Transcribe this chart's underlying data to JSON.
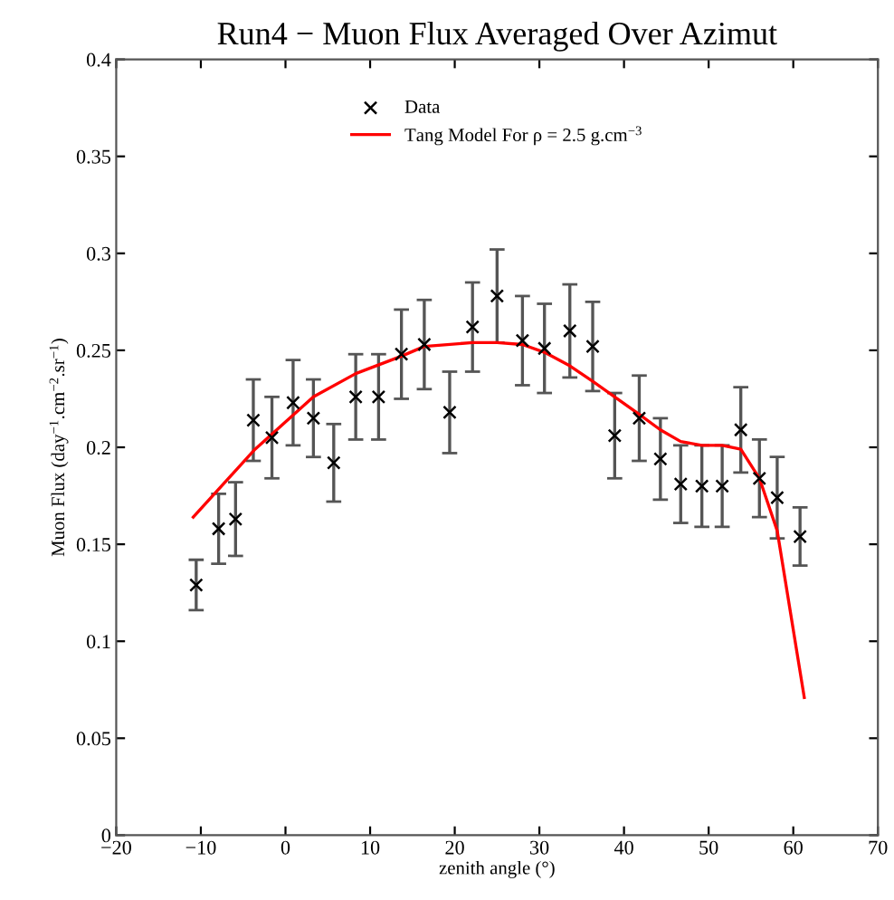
{
  "chart_data": {
    "type": "scatter",
    "title": "Run4 − Muon Flux Averaged Over Azimut",
    "xlabel": "zenith angle (°)",
    "ylabel": "Muon Flux (day$^{−1}$.cm$^{−2}$.sr$^{−1}$)",
    "xlim": [
      -20,
      70
    ],
    "xticks": [
      -20,
      -10,
      0,
      10,
      20,
      30,
      40,
      50,
      60,
      70
    ],
    "ylim": [
      0,
      0.4
    ],
    "yticks": [
      0,
      0.05,
      0.1,
      0.15,
      0.2,
      0.25,
      0.3,
      0.35,
      0.4
    ],
    "grid": false,
    "legend": "top",
    "series": [
      {
        "name": "Data",
        "marker": "cross",
        "color": "#000000",
        "x": [
          -10.55,
          -7.9,
          -5.9,
          -3.8,
          -1.6,
          0.9,
          3.3,
          5.7,
          8.3,
          11.0,
          13.7,
          16.4,
          19.4,
          22.1,
          25.0,
          28.0,
          30.6,
          33.6,
          36.3,
          38.9,
          41.8,
          44.3,
          46.7,
          49.2,
          51.6,
          53.8,
          56.0,
          58.1,
          60.8
        ],
        "values": [
          0.129,
          0.158,
          0.163,
          0.214,
          0.205,
          0.223,
          0.215,
          0.192,
          0.226,
          0.226,
          0.248,
          0.253,
          0.218,
          0.262,
          0.278,
          0.255,
          0.251,
          0.26,
          0.252,
          0.206,
          0.215,
          0.194,
          0.181,
          0.18,
          0.18,
          0.209,
          0.184,
          0.174,
          0.154
        ],
        "errors": [
          0.013,
          0.018,
          0.019,
          0.021,
          0.021,
          0.022,
          0.02,
          0.02,
          0.022,
          0.022,
          0.023,
          0.023,
          0.021,
          0.023,
          0.024,
          0.023,
          0.023,
          0.024,
          0.023,
          0.022,
          0.022,
          0.021,
          0.02,
          0.021,
          0.021,
          0.022,
          0.02,
          0.021,
          0.015
        ]
      },
      {
        "name": "Tang Model For ρ = 2.5 g.cm$^{−3}$",
        "type": "line",
        "color": "#ff0000",
        "marker": "none",
        "line_style": "solid",
        "x": [
          -10.9,
          -3.6,
          3.3,
          8.3,
          13.7,
          16.4,
          22.1,
          25.0,
          28.0,
          30.6,
          33.6,
          36.3,
          38.9,
          41.8,
          44.3,
          46.7,
          49.2,
          51.6,
          53.8,
          56.0,
          58.1,
          61.3
        ],
        "values": [
          0.164,
          0.199,
          0.226,
          0.238,
          0.247,
          0.252,
          0.254,
          0.254,
          0.253,
          0.249,
          0.242,
          0.234,
          0.226,
          0.217,
          0.209,
          0.203,
          0.201,
          0.201,
          0.199,
          0.184,
          0.157,
          0.071
        ]
      }
    ]
  }
}
